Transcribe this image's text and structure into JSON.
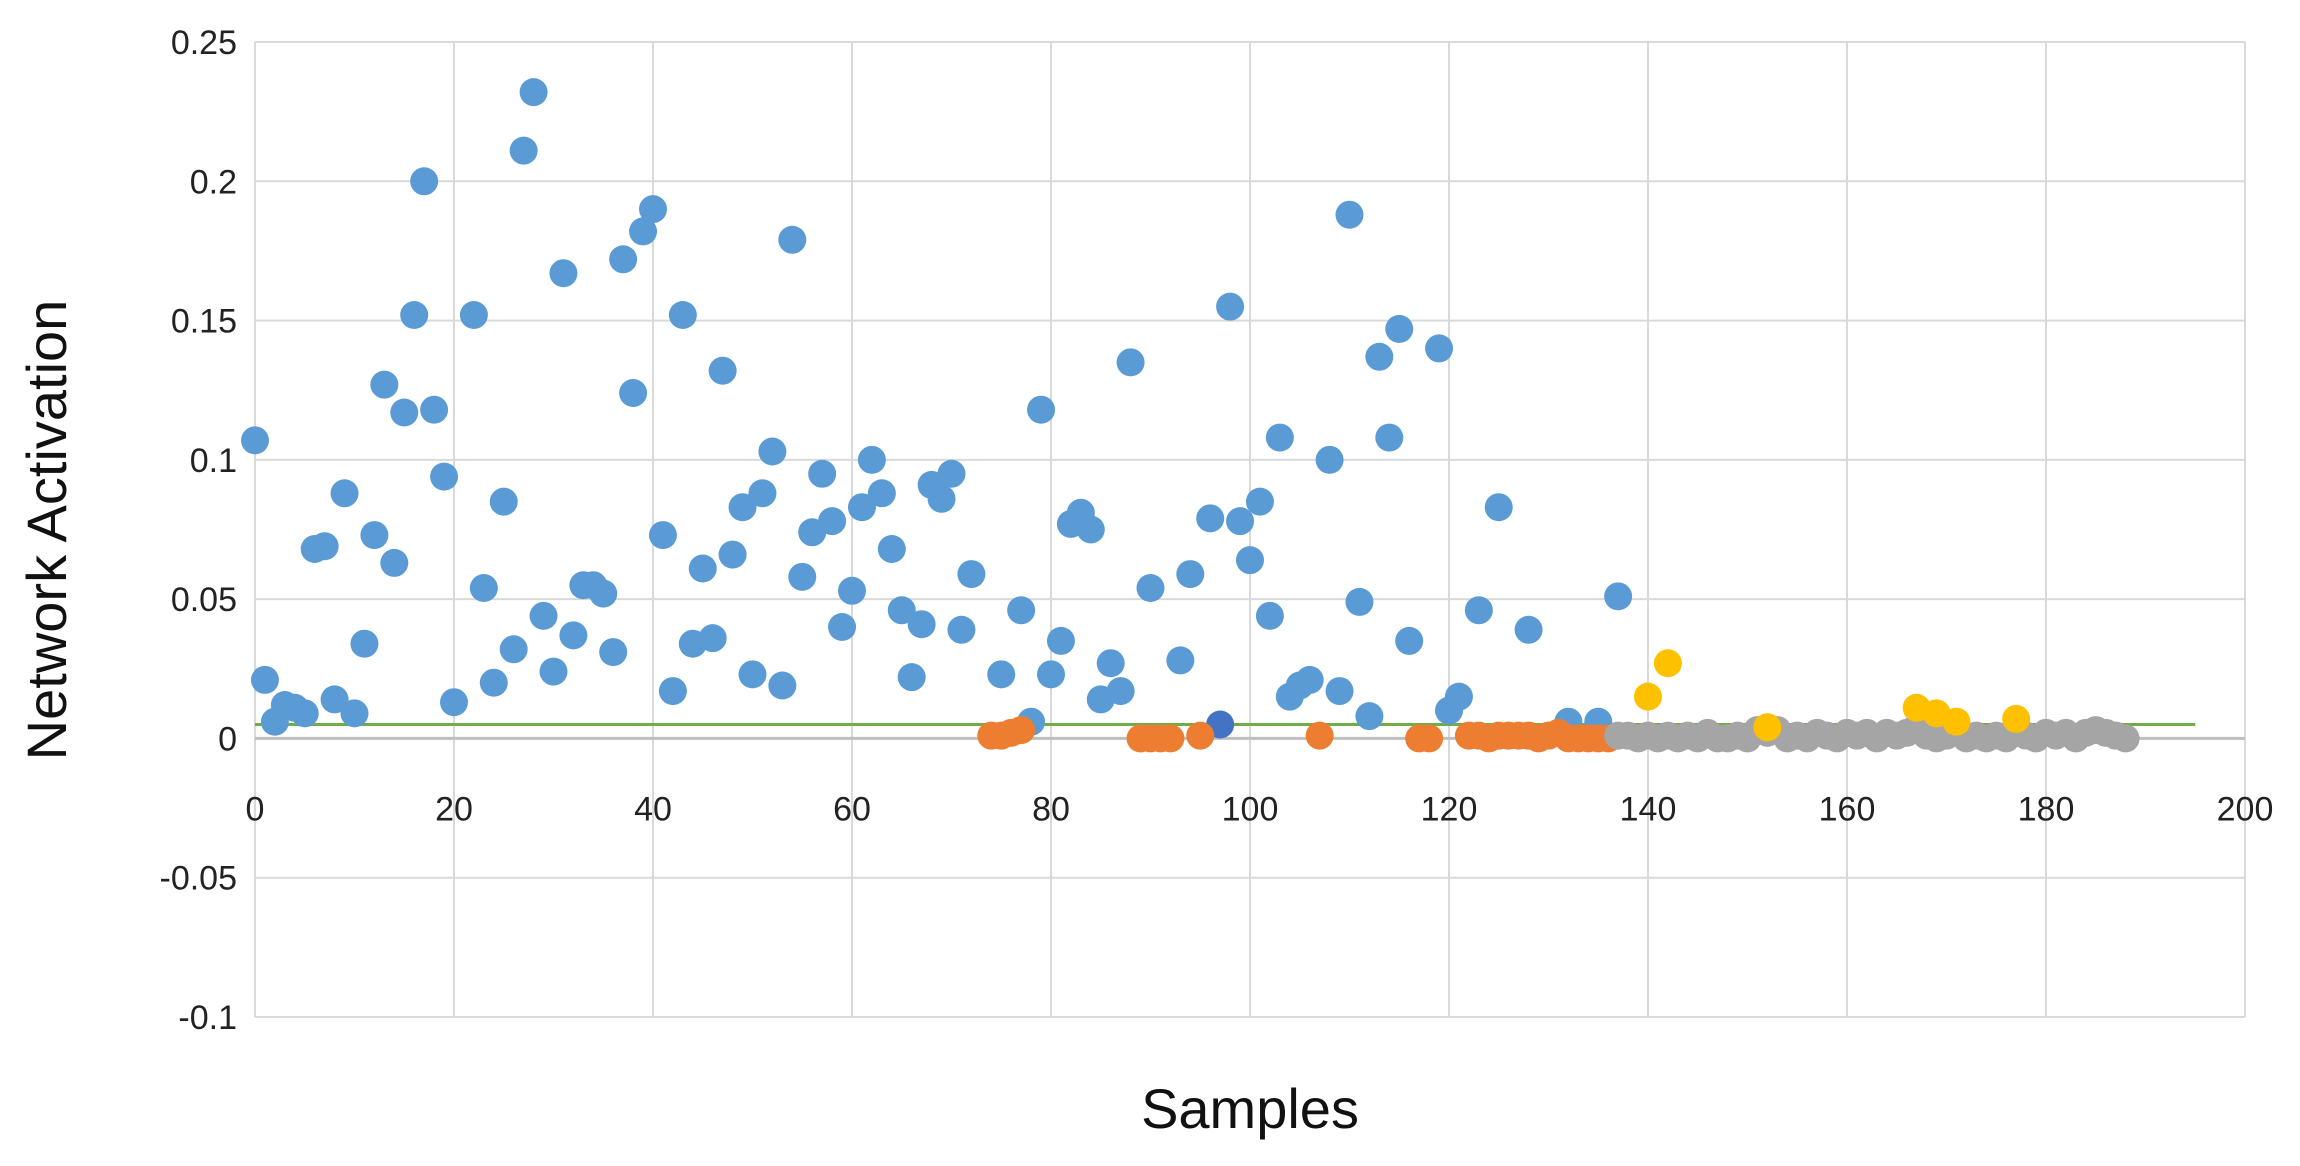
{
  "chart_data": {
    "type": "scatter",
    "xlabel": "Samples",
    "ylabel": "Network Activation",
    "xlim": [
      0,
      200
    ],
    "ylim": [
      -0.1,
      0.25
    ],
    "x_ticks": [
      0,
      20,
      40,
      60,
      80,
      100,
      120,
      140,
      160,
      180,
      200
    ],
    "y_ticks": [
      -0.1,
      -0.05,
      0,
      0.05,
      0.1,
      0.15,
      0.2,
      0.25
    ],
    "y_tick_labels": [
      "-0.1",
      "-0.05",
      "0",
      "0.05",
      "0.1",
      "0.15",
      "0.2",
      "0.25"
    ],
    "grid": true,
    "threshold": {
      "y": 0.005,
      "x_end": 195,
      "color": "#70ad47"
    },
    "series": [
      {
        "color": "#5b9bd5",
        "points": [
          [
            0,
            0.107
          ],
          [
            1,
            0.021
          ],
          [
            2,
            0.006
          ],
          [
            3,
            0.012
          ],
          [
            4,
            0.011
          ],
          [
            5,
            0.009
          ],
          [
            6,
            0.068
          ],
          [
            7,
            0.069
          ],
          [
            8,
            0.014
          ],
          [
            9,
            0.088
          ],
          [
            10,
            0.009
          ],
          [
            11,
            0.034
          ],
          [
            12,
            0.073
          ],
          [
            13,
            0.127
          ],
          [
            14,
            0.063
          ],
          [
            15,
            0.117
          ],
          [
            16,
            0.152
          ],
          [
            17,
            0.2
          ],
          [
            18,
            0.118
          ],
          [
            19,
            0.094
          ],
          [
            20,
            0.013
          ],
          [
            22,
            0.152
          ],
          [
            23,
            0.054
          ],
          [
            24,
            0.02
          ],
          [
            25,
            0.085
          ],
          [
            26,
            0.032
          ],
          [
            27,
            0.211
          ],
          [
            28,
            0.232
          ],
          [
            29,
            0.044
          ],
          [
            30,
            0.024
          ],
          [
            31,
            0.167
          ],
          [
            32,
            0.037
          ],
          [
            33,
            0.055
          ],
          [
            34,
            0.055
          ],
          [
            35,
            0.052
          ],
          [
            36,
            0.031
          ],
          [
            37,
            0.172
          ],
          [
            38,
            0.124
          ],
          [
            39,
            0.182
          ],
          [
            40,
            0.19
          ],
          [
            41,
            0.073
          ],
          [
            42,
            0.017
          ],
          [
            43,
            0.152
          ],
          [
            44,
            0.034
          ],
          [
            45,
            0.061
          ],
          [
            46,
            0.036
          ],
          [
            47,
            0.132
          ],
          [
            48,
            0.066
          ],
          [
            49,
            0.083
          ],
          [
            50,
            0.023
          ],
          [
            51,
            0.088
          ],
          [
            52,
            0.103
          ],
          [
            53,
            0.019
          ],
          [
            54,
            0.179
          ],
          [
            55,
            0.058
          ],
          [
            56,
            0.074
          ],
          [
            57,
            0.095
          ],
          [
            58,
            0.078
          ],
          [
            59,
            0.04
          ],
          [
            60,
            0.053
          ],
          [
            61,
            0.083
          ],
          [
            62,
            0.1
          ],
          [
            63,
            0.088
          ],
          [
            64,
            0.068
          ],
          [
            65,
            0.046
          ],
          [
            66,
            0.022
          ],
          [
            67,
            0.041
          ],
          [
            68,
            0.091
          ],
          [
            69,
            0.086
          ],
          [
            70,
            0.095
          ],
          [
            71,
            0.039
          ],
          [
            72,
            0.059
          ],
          [
            75,
            0.023
          ],
          [
            77,
            0.046
          ],
          [
            78,
            0.006
          ],
          [
            79,
            0.118
          ],
          [
            80,
            0.023
          ],
          [
            81,
            0.035
          ],
          [
            82,
            0.077
          ],
          [
            83,
            0.081
          ],
          [
            84,
            0.075
          ],
          [
            85,
            0.014
          ],
          [
            86,
            0.027
          ],
          [
            87,
            0.017
          ],
          [
            88,
            0.135
          ],
          [
            90,
            0.054
          ],
          [
            93,
            0.028
          ],
          [
            94,
            0.059
          ],
          [
            96,
            0.079
          ],
          [
            98,
            0.155
          ],
          [
            99,
            0.078
          ],
          [
            100,
            0.064
          ],
          [
            101,
            0.085
          ],
          [
            102,
            0.044
          ],
          [
            103,
            0.108
          ],
          [
            104,
            0.015
          ],
          [
            105,
            0.019
          ],
          [
            106,
            0.021
          ],
          [
            108,
            0.1
          ],
          [
            109,
            0.017
          ],
          [
            110,
            0.188
          ],
          [
            111,
            0.049
          ],
          [
            112,
            0.008
          ],
          [
            113,
            0.137
          ],
          [
            114,
            0.108
          ],
          [
            115,
            0.147
          ],
          [
            116,
            0.035
          ],
          [
            119,
            0.14
          ],
          [
            120,
            0.01
          ],
          [
            121,
            0.015
          ],
          [
            123,
            0.046
          ],
          [
            125,
            0.083
          ],
          [
            128,
            0.039
          ],
          [
            132,
            0.006
          ],
          [
            135,
            0.006
          ],
          [
            137,
            0.051
          ]
        ]
      },
      {
        "color": "#4472c4",
        "points": [
          [
            97,
            0.005
          ]
        ]
      },
      {
        "color": "#ed7d31",
        "points": [
          [
            74,
            0.001
          ],
          [
            75,
            0.001
          ],
          [
            76,
            0.002
          ],
          [
            77,
            0.003
          ],
          [
            89,
            0
          ],
          [
            90,
            0
          ],
          [
            91,
            0
          ],
          [
            92,
            0
          ],
          [
            95,
            0.001
          ],
          [
            107,
            0.001
          ],
          [
            117,
            0
          ],
          [
            118,
            0
          ],
          [
            122,
            0.001
          ],
          [
            123,
            0.001
          ],
          [
            124,
            0
          ],
          [
            125,
            0.001
          ],
          [
            126,
            0.001
          ],
          [
            127,
            0.001
          ],
          [
            128,
            0.001
          ],
          [
            129,
            0
          ],
          [
            130,
            0.001
          ],
          [
            131,
            0.002
          ],
          [
            132,
            0
          ],
          [
            133,
            0
          ],
          [
            134,
            0
          ],
          [
            135,
            0
          ],
          [
            136,
            0
          ]
        ]
      },
      {
        "color": "#a5a5a5",
        "points": [
          [
            137,
            0.001
          ],
          [
            138,
            0.001
          ],
          [
            139,
            0
          ],
          [
            140,
            0.001
          ],
          [
            141,
            0
          ],
          [
            142,
            0.001
          ],
          [
            143,
            0
          ],
          [
            144,
            0.001
          ],
          [
            145,
            0
          ],
          [
            146,
            0.002
          ],
          [
            147,
            0
          ],
          [
            148,
            0
          ],
          [
            149,
            0.001
          ],
          [
            150,
            0
          ],
          [
            151,
            0.003
          ],
          [
            152,
            0.002
          ],
          [
            153,
            0.003
          ],
          [
            154,
            0
          ],
          [
            155,
            0.001
          ],
          [
            156,
            0
          ],
          [
            157,
            0.002
          ],
          [
            158,
            0.001
          ],
          [
            159,
            0
          ],
          [
            160,
            0.002
          ],
          [
            161,
            0.001
          ],
          [
            162,
            0.002
          ],
          [
            163,
            0
          ],
          [
            164,
            0.002
          ],
          [
            165,
            0.001
          ],
          [
            166,
            0.002
          ],
          [
            167,
            0.004
          ],
          [
            168,
            0.001
          ],
          [
            169,
            0
          ],
          [
            170,
            0.001
          ],
          [
            171,
            0.002
          ],
          [
            172,
            0
          ],
          [
            173,
            0.001
          ],
          [
            174,
            0
          ],
          [
            175,
            0.001
          ],
          [
            176,
            0
          ],
          [
            177,
            0.002
          ],
          [
            178,
            0.001
          ],
          [
            179,
            0
          ],
          [
            180,
            0.002
          ],
          [
            181,
            0.001
          ],
          [
            182,
            0.002
          ],
          [
            183,
            0
          ],
          [
            184,
            0.002
          ],
          [
            185,
            0.003
          ],
          [
            186,
            0.002
          ],
          [
            187,
            0.001
          ],
          [
            188,
            0
          ]
        ]
      },
      {
        "color": "#ffc000",
        "points": [
          [
            140,
            0.015
          ],
          [
            142,
            0.027
          ],
          [
            152,
            0.004
          ],
          [
            167,
            0.011
          ],
          [
            169,
            0.009
          ],
          [
            171,
            0.006
          ],
          [
            177,
            0.007
          ]
        ]
      }
    ]
  }
}
